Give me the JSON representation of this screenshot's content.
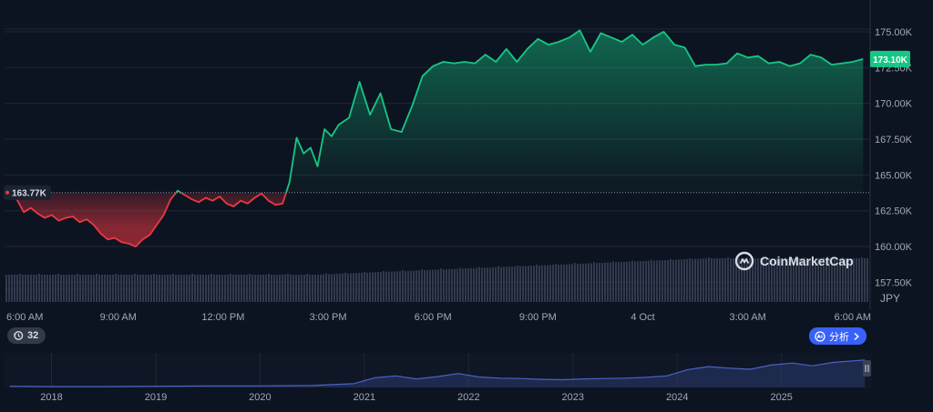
{
  "brand": {
    "name": "CoinMarketCap",
    "icon": "coinmarketcap-logo-icon"
  },
  "controls": {
    "history_count": "32",
    "history_icon": "history-clock-icon",
    "analysis_label": "分析",
    "analysis_icon": "ai-analysis-icon",
    "analysis_chevron": "chevron-right-icon"
  },
  "colors": {
    "background": "#0d1421",
    "up": "#16c784",
    "down": "#ea3943",
    "volume": "#313a4d",
    "navigator_line": "#4b62c4",
    "badge_ref": "#1b2230"
  },
  "chart_data": [
    {
      "type": "area",
      "currency": "JPY",
      "reference_value": 163.77,
      "reference_label": "163.77K",
      "current_label": "173.10K",
      "y_ticks": [
        "175.00K",
        "172.50K",
        "170.00K",
        "167.50K",
        "165.00K",
        "162.50K",
        "160.00K",
        "157.50K"
      ],
      "y_tick_values": [
        175,
        172.5,
        170,
        167.5,
        165,
        162.5,
        160,
        157.5
      ],
      "ylim": [
        155.62,
        177.22
      ],
      "x_ticks": [
        "6:00 AM",
        "9:00 AM",
        "12:00 PM",
        "3:00 PM",
        "6:00 PM",
        "9:00 PM",
        "4 Oct",
        "3:00 AM",
        "6:00 AM"
      ],
      "x_tick_hours": [
        6,
        9,
        12,
        15,
        18,
        21,
        24,
        27,
        30
      ],
      "xlim": [
        5.75,
        30.5
      ],
      "series": [
        {
          "x": [
            5.9,
            6.1,
            6.3,
            6.5,
            6.7,
            6.9,
            7.1,
            7.3,
            7.5,
            7.7,
            7.9,
            8.1,
            8.3,
            8.5,
            8.7,
            8.9,
            9.1,
            9.3,
            9.5,
            9.7,
            9.9,
            10.1,
            10.3,
            10.5,
            10.7,
            10.9,
            11.1,
            11.3,
            11.5,
            11.7,
            11.9,
            12.1,
            12.3,
            12.5,
            12.7,
            12.9,
            13.1,
            13.3,
            13.5,
            13.7,
            13.9,
            14.1,
            14.3,
            14.5,
            14.7,
            14.9,
            15.1,
            15.3,
            15.6,
            15.9,
            16.2,
            16.5,
            16.8,
            17.1,
            17.4,
            17.7,
            18.0,
            18.3,
            18.6,
            18.9,
            19.2,
            19.5,
            19.8,
            20.1,
            20.4,
            20.7,
            21.0,
            21.3,
            21.6,
            21.9,
            22.2,
            22.5,
            22.8,
            23.1,
            23.4,
            23.7,
            24.0,
            24.3,
            24.6,
            24.9,
            25.2,
            25.5,
            25.8,
            26.1,
            26.4,
            26.7,
            27.0,
            27.3,
            27.6,
            27.9,
            28.2,
            28.5,
            28.8,
            29.1,
            29.4,
            29.7,
            30.0,
            30.3
          ],
          "y": [
            163.8,
            163.3,
            162.4,
            162.7,
            162.3,
            162.0,
            162.2,
            161.8,
            162.0,
            162.1,
            161.7,
            161.9,
            161.5,
            160.9,
            160.5,
            160.6,
            160.3,
            160.2,
            160.0,
            160.5,
            160.8,
            161.5,
            162.2,
            163.3,
            163.9,
            163.6,
            163.3,
            163.1,
            163.4,
            163.2,
            163.5,
            163.0,
            162.8,
            163.2,
            163.0,
            163.4,
            163.7,
            163.2,
            162.9,
            163.0,
            164.5,
            167.6,
            166.5,
            166.9,
            165.6,
            168.2,
            167.7,
            168.5,
            169.0,
            171.5,
            169.2,
            170.7,
            168.2,
            168.0,
            169.8,
            171.9,
            172.6,
            172.9,
            172.8,
            172.9,
            172.8,
            173.4,
            172.9,
            173.8,
            172.9,
            173.8,
            174.5,
            174.1,
            174.3,
            174.6,
            175.1,
            173.6,
            174.9,
            174.6,
            174.3,
            174.8,
            174.1,
            174.6,
            175.0,
            174.1,
            173.9,
            172.6,
            172.7,
            172.7,
            172.8,
            173.5,
            173.2,
            173.3,
            172.8,
            172.9,
            172.6,
            172.8,
            173.4,
            173.2,
            172.7,
            172.8,
            172.9,
            173.1
          ]
        }
      ]
    },
    {
      "type": "area",
      "role": "navigator",
      "x_ticks": [
        "2018",
        "2019",
        "2020",
        "2021",
        "2022",
        "2023",
        "2024",
        "2025"
      ],
      "x_tick_years": [
        2018,
        2019,
        2020,
        2021,
        2022,
        2023,
        2024,
        2025
      ],
      "xlim": [
        2017.55,
        2025.85
      ],
      "series": [
        {
          "x": [
            2017.6,
            2018.0,
            2018.5,
            2019.0,
            2019.5,
            2020.0,
            2020.5,
            2020.9,
            2021.1,
            2021.3,
            2021.5,
            2021.7,
            2021.9,
            2022.1,
            2022.3,
            2022.5,
            2022.7,
            2022.9,
            2023.1,
            2023.3,
            2023.5,
            2023.7,
            2023.9,
            2024.1,
            2024.3,
            2024.5,
            2024.7,
            2024.9,
            2025.1,
            2025.3,
            2025.5,
            2025.8
          ],
          "y": [
            0.3,
            0.2,
            0.2,
            0.3,
            0.4,
            0.4,
            0.5,
            1.0,
            2.5,
            3.0,
            2.2,
            2.8,
            3.6,
            2.7,
            2.4,
            2.3,
            2.1,
            2.0,
            2.2,
            2.3,
            2.4,
            2.6,
            3.0,
            4.6,
            5.4,
            5.0,
            4.7,
            5.8,
            6.3,
            5.6,
            6.5,
            7.1
          ]
        }
      ]
    }
  ]
}
